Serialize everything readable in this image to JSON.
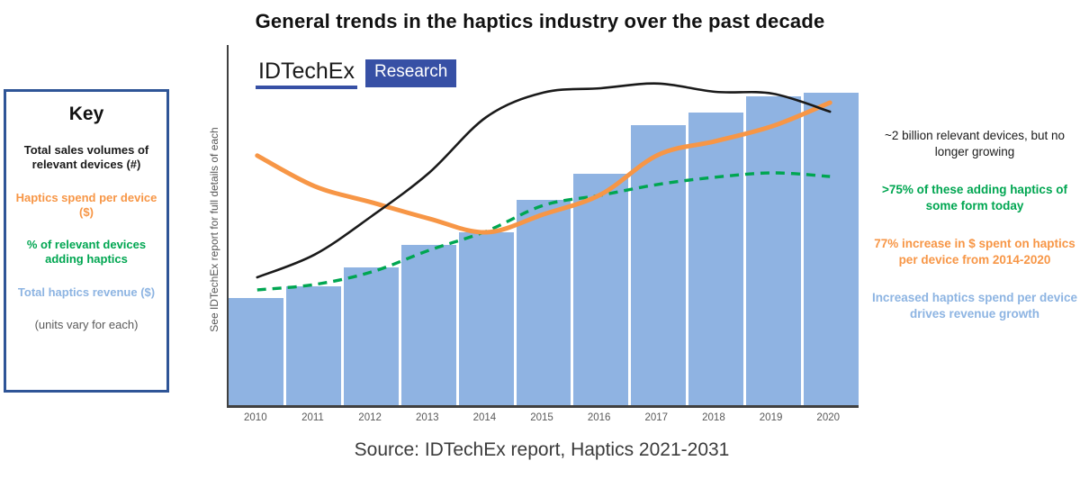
{
  "title": "General trends in the haptics industry over the past decade",
  "logo": {
    "brand": "IDTechEx",
    "sub": "Research",
    "accent_color": "#3750A5"
  },
  "key": {
    "heading": "Key",
    "items": [
      {
        "label": "Total sales volumes of relevant devices (#)",
        "color": "#1A1A1A"
      },
      {
        "label": "Haptics spend per device ($)",
        "color": "#F79646"
      },
      {
        "label": "% of relevant devices adding haptics",
        "color": "#00A651"
      },
      {
        "label": "Total haptics revenue ($)",
        "color": "#8DB4E2"
      }
    ],
    "note": "(units vary for each)"
  },
  "y_axis_label": "See IDTechEx report for full details of each",
  "annotations": [
    {
      "text": "~2 billion relevant devices, but no longer growing",
      "color": "#1A1A1A",
      "bold": false
    },
    {
      "text": ">75% of these adding haptics of some form today",
      "color": "#00A651",
      "bold": true
    },
    {
      "text": "77% increase in $ spent on haptics per device from 2014-2020",
      "color": "#F79646",
      "bold": true
    },
    {
      "text": "Increased haptics spend per device drives revenue growth",
      "color": "#8DB4E2",
      "bold": true
    }
  ],
  "source": "Source: IDTechEx report, Haptics 2021-2031",
  "chart_data": {
    "type": "combo",
    "x": [
      "2010",
      "2011",
      "2012",
      "2013",
      "2014",
      "2015",
      "2016",
      "2017",
      "2018",
      "2019",
      "2020"
    ],
    "value_scale": "relative units 0-100; chart shows no numeric y-axis (units vary per series)",
    "grid": false,
    "legend_position": "left key box",
    "series": [
      {
        "name": "Total haptics revenue ($)",
        "type": "bar",
        "color": "#8FB3E2",
        "values": [
          29.8,
          33.0,
          38.3,
          44.5,
          48.0,
          57.0,
          64.3,
          77.8,
          81.3,
          85.8,
          86.8
        ]
      },
      {
        "name": "% of relevant devices adding haptics",
        "type": "line",
        "line_style": "dashed",
        "color": "#00A651",
        "values": [
          32.0,
          33.5,
          37.0,
          43.0,
          48.3,
          55.5,
          58.3,
          61.3,
          63.3,
          64.5,
          63.5
        ]
      },
      {
        "name": "Haptics spend per device ($)",
        "type": "line",
        "line_style": "solid",
        "color": "#F79646",
        "values": [
          69.3,
          60.8,
          56.3,
          51.8,
          48.0,
          53.0,
          58.5,
          69.5,
          73.3,
          77.5,
          84.0
        ]
      },
      {
        "name": "Total sales volumes of relevant devices (#)",
        "type": "line",
        "line_style": "solid",
        "color": "#1A1A1A",
        "values": [
          35.5,
          41.8,
          52.5,
          64.5,
          80.0,
          86.8,
          88.0,
          89.3,
          87.0,
          86.5,
          81.5
        ]
      }
    ]
  }
}
